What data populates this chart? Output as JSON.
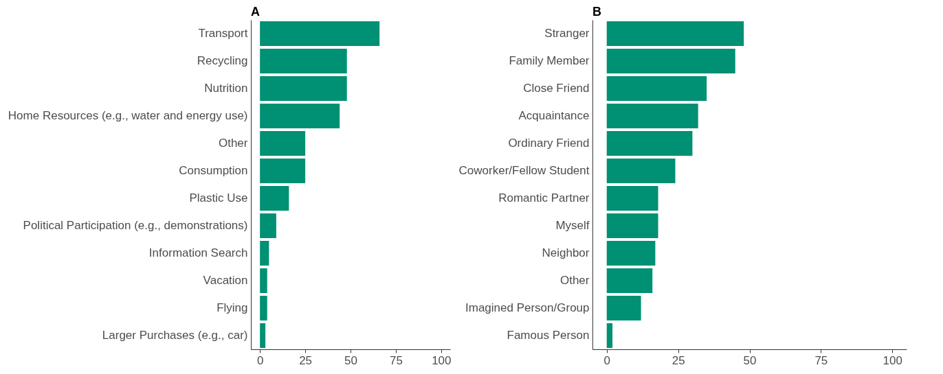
{
  "chart_data": [
    {
      "type": "bar",
      "title": "A",
      "orientation": "horizontal",
      "categories": [
        "Transport",
        "Recycling",
        "Nutrition",
        "Home Resources (e.g., water and energy use)",
        "Other",
        "Consumption",
        "Plastic Use",
        "Political Participation (e.g., demonstrations)",
        "Information Search",
        "Vacation",
        "Flying",
        "Larger Purchases (e.g., car)"
      ],
      "values": [
        66,
        48,
        48,
        44,
        25,
        25,
        16,
        9,
        5,
        4,
        4,
        3
      ],
      "color": "#009073",
      "xlim": [
        -5,
        105
      ],
      "xticks": [
        0,
        25,
        50,
        75,
        100
      ],
      "grid": false
    },
    {
      "type": "bar",
      "title": "B",
      "orientation": "horizontal",
      "categories": [
        "Stranger",
        "Family Member",
        "Close Friend",
        "Acquaintance",
        "Ordinary Friend",
        "Coworker/Fellow Student",
        "Romantic Partner",
        "Myself",
        "Neighbor",
        "Other",
        "Imagined Person/Group",
        "Famous Person"
      ],
      "values": [
        48,
        45,
        35,
        32,
        30,
        24,
        18,
        18,
        17,
        16,
        12,
        2
      ],
      "color": "#009073",
      "xlim": [
        -5,
        105
      ],
      "xticks": [
        0,
        25,
        50,
        75,
        100
      ],
      "grid": false
    }
  ]
}
